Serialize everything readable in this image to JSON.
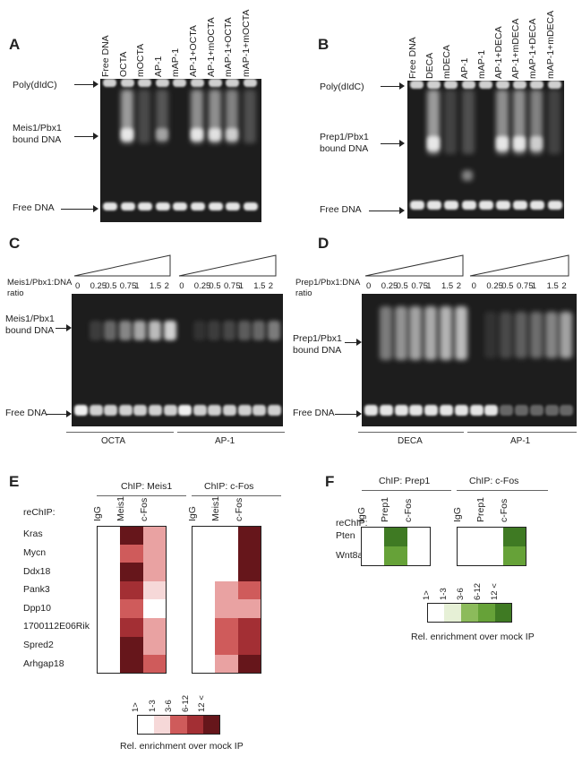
{
  "panels": {
    "A": {
      "label": "A",
      "lanes": [
        "Free DNA",
        "OCTA",
        "mOCTA",
        "AP-1",
        "mAP-1",
        "AP-1+OCTA",
        "AP-1+mOCTA",
        "mAP-1+OCTA",
        "mAP-1+mOCTA"
      ],
      "side_labels": {
        "top": "Poly(dIdC)",
        "middle": "Meis1/Pbx1\nbound DNA",
        "bottom": "Free DNA"
      }
    },
    "B": {
      "label": "B",
      "lanes": [
        "Free DNA",
        "DECA",
        "mDECA",
        "AP-1",
        "mAP-1",
        "AP-1+DECA",
        "AP-1+mDECA",
        "mAP-1+DECA",
        "mAP-1+mDECA"
      ],
      "side_labels": {
        "top": "Poly(dIdC)",
        "middle": "Prep1/Pbx1\nbound DNA",
        "bottom": "Free DNA"
      }
    },
    "C": {
      "label": "C",
      "ratio_label": "Meis1/Pbx1:DNA\nratio",
      "concentrations": [
        "0",
        "0.25",
        "0.5",
        "0.75",
        "1",
        "1.5",
        "2"
      ],
      "side_labels": {
        "middle": "Meis1/Pbx1\nbound DNA",
        "bottom": "Free DNA"
      },
      "groups": [
        "OCTA",
        "AP-1"
      ]
    },
    "D": {
      "label": "D",
      "ratio_label": "Prep1/Pbx1:DNA\nratio",
      "concentrations": [
        "0",
        "0.25",
        "0.5",
        "0.75",
        "1",
        "1.5",
        "2"
      ],
      "side_labels": {
        "middle": "Prep1/Pbx1\nbound DNA",
        "bottom": "Free DNA"
      },
      "groups": [
        "DECA",
        "AP-1"
      ]
    },
    "E": {
      "label": "E",
      "chip_headers": [
        "ChIP: Meis1",
        "ChIP: c-Fos"
      ],
      "rechip_label": "reChIP:",
      "columns": [
        "IgG",
        "Meis1",
        "c-Fos"
      ],
      "genes": [
        "Kras",
        "Mycn",
        "Ddx18",
        "Pank3",
        "Dpp10",
        "1700112E06Rik",
        "Spred2",
        "Arhgap18"
      ],
      "levels_meis1": [
        [
          0,
          5,
          2
        ],
        [
          0,
          3,
          2
        ],
        [
          0,
          5,
          2
        ],
        [
          0,
          4,
          1
        ],
        [
          0,
          3,
          0
        ],
        [
          0,
          4,
          2
        ],
        [
          0,
          5,
          2
        ],
        [
          0,
          5,
          3
        ]
      ],
      "levels_cfos": [
        [
          0,
          0,
          5
        ],
        [
          0,
          0,
          5
        ],
        [
          0,
          0,
          5
        ],
        [
          0,
          2,
          3
        ],
        [
          0,
          2,
          2
        ],
        [
          0,
          3,
          4
        ],
        [
          0,
          3,
          4
        ],
        [
          0,
          2,
          5
        ]
      ],
      "legend_ticks": [
        "1>",
        "1-3",
        "3-6",
        "6-12",
        "12 <"
      ],
      "legend_title": "Rel. enrichment over mock IP",
      "colors": [
        "#ffffff",
        "#f6d8d8",
        "#e9a2a2",
        "#cf5b5b",
        "#a32f34",
        "#66161b"
      ]
    },
    "F": {
      "label": "F",
      "chip_headers": [
        "ChIP: Prep1",
        "ChIP: c-Fos"
      ],
      "rechip_label": "reChIP:",
      "columns": [
        "IgG",
        "Prep1",
        "c-Fos"
      ],
      "genes": [
        "Pten",
        "Wnt8a"
      ],
      "levels_prep1": [
        [
          0,
          5,
          0
        ],
        [
          0,
          4,
          0
        ]
      ],
      "levels_cfos": [
        [
          0,
          0,
          5
        ],
        [
          0,
          0,
          4
        ]
      ],
      "legend_ticks": [
        "1>",
        "1-3",
        "3-6",
        "6-12",
        "12 <"
      ],
      "legend_title": "Rel. enrichment over mock IP",
      "colors": [
        "#ffffff",
        "#e6f0d6",
        "#bcd79c",
        "#8cbb5b",
        "#66a238",
        "#3f7a23"
      ]
    }
  }
}
